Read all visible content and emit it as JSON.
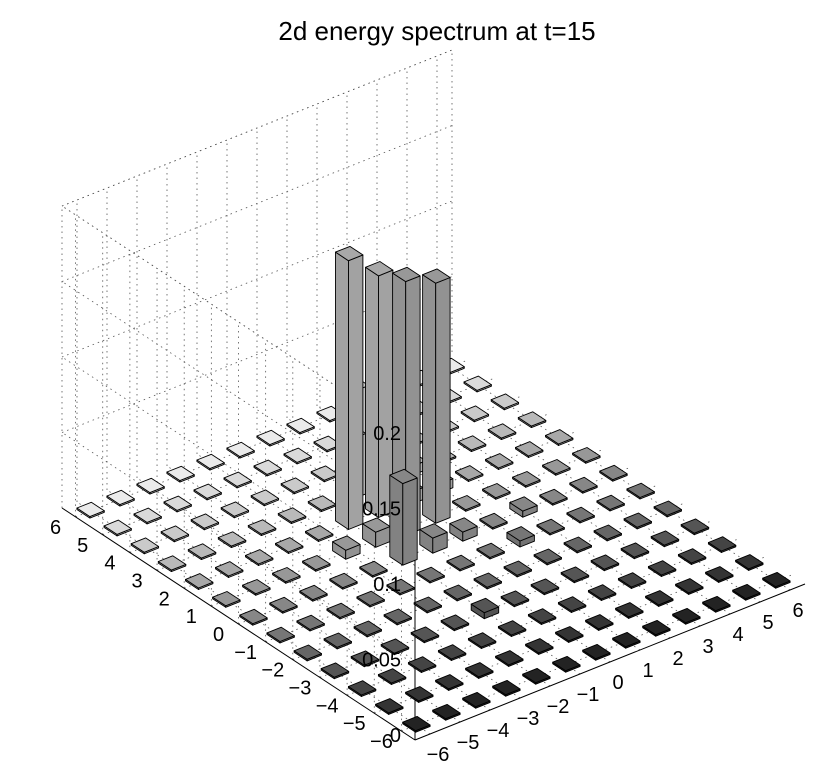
{
  "chart_data": {
    "type": "bar3d",
    "title": "2d energy spectrum at t=15",
    "x_ticks": [
      "−6",
      "−5",
      "−4",
      "−3",
      "−2",
      "−1",
      "0",
      "1",
      "2",
      "3",
      "4",
      "5",
      "6"
    ],
    "y_ticks": [
      "−6",
      "−5",
      "−4",
      "−3",
      "−2",
      "−1",
      "0",
      "1",
      "2",
      "3",
      "4",
      "5",
      "6"
    ],
    "z_ticks": [
      "0",
      "0.05",
      "0.1",
      "0.15",
      "0.2"
    ],
    "x_range": [
      -6,
      6
    ],
    "y_range": [
      -6,
      6
    ],
    "zlim": [
      0,
      0.2
    ],
    "grid": true,
    "background_value": 0.001,
    "bars": [
      {
        "x": 0,
        "y": 1,
        "z": 0.168
      },
      {
        "x": 1,
        "y": 1,
        "z": 0.159
      },
      {
        "x": 0,
        "y": 2,
        "z": 0.16
      },
      {
        "x": -1,
        "y": 2,
        "z": 0.178
      },
      {
        "x": -1,
        "y": 0,
        "z": 0.054
      },
      {
        "x": 1,
        "y": 4,
        "z": 0.052
      },
      {
        "x": 1,
        "y": 3,
        "z": 0.045
      },
      {
        "x": 0,
        "y": 3,
        "z": 0.04
      },
      {
        "x": 2,
        "y": 3,
        "z": 0.006
      },
      {
        "x": -1,
        "y": -3,
        "z": 0.004
      },
      {
        "x": 2,
        "y": -1,
        "z": 0.004
      },
      {
        "x": 3,
        "y": 0,
        "z": 0.004
      },
      {
        "x": 0,
        "y": 0,
        "z": 0.01
      },
      {
        "x": -1,
        "y": 1,
        "z": 0.01
      },
      {
        "x": 1,
        "y": 2,
        "z": 0.008
      },
      {
        "x": 2,
        "y": 2,
        "z": 0.006
      },
      {
        "x": 1,
        "y": 0,
        "z": 0.006
      },
      {
        "x": -2,
        "y": 1,
        "z": 0.006
      }
    ]
  }
}
